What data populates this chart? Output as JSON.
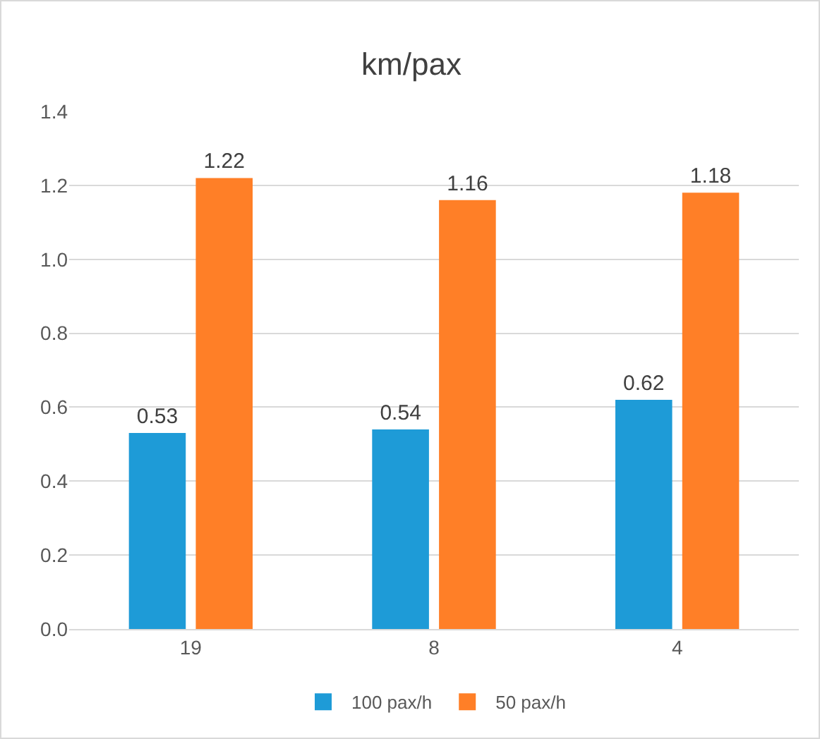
{
  "chart_data": {
    "type": "bar",
    "title": "km/pax",
    "categories": [
      "19",
      "8",
      "4"
    ],
    "series": [
      {
        "name": "100 pax/h",
        "color": "#1e9bd7",
        "values": [
          0.53,
          0.54,
          0.62
        ]
      },
      {
        "name": "50 pax/h",
        "color": "#ff7f27",
        "values": [
          1.22,
          1.16,
          1.18
        ]
      }
    ],
    "ylim": [
      0,
      1.4
    ],
    "yticks": [
      {
        "value": 0,
        "label": "0.0"
      },
      0.2,
      0.4,
      0.6,
      0.8,
      {
        "value": 1,
        "label": "1.0"
      },
      1.2,
      1.4
    ],
    "grid": "y",
    "legend": "bottom",
    "data_labels": true
  }
}
